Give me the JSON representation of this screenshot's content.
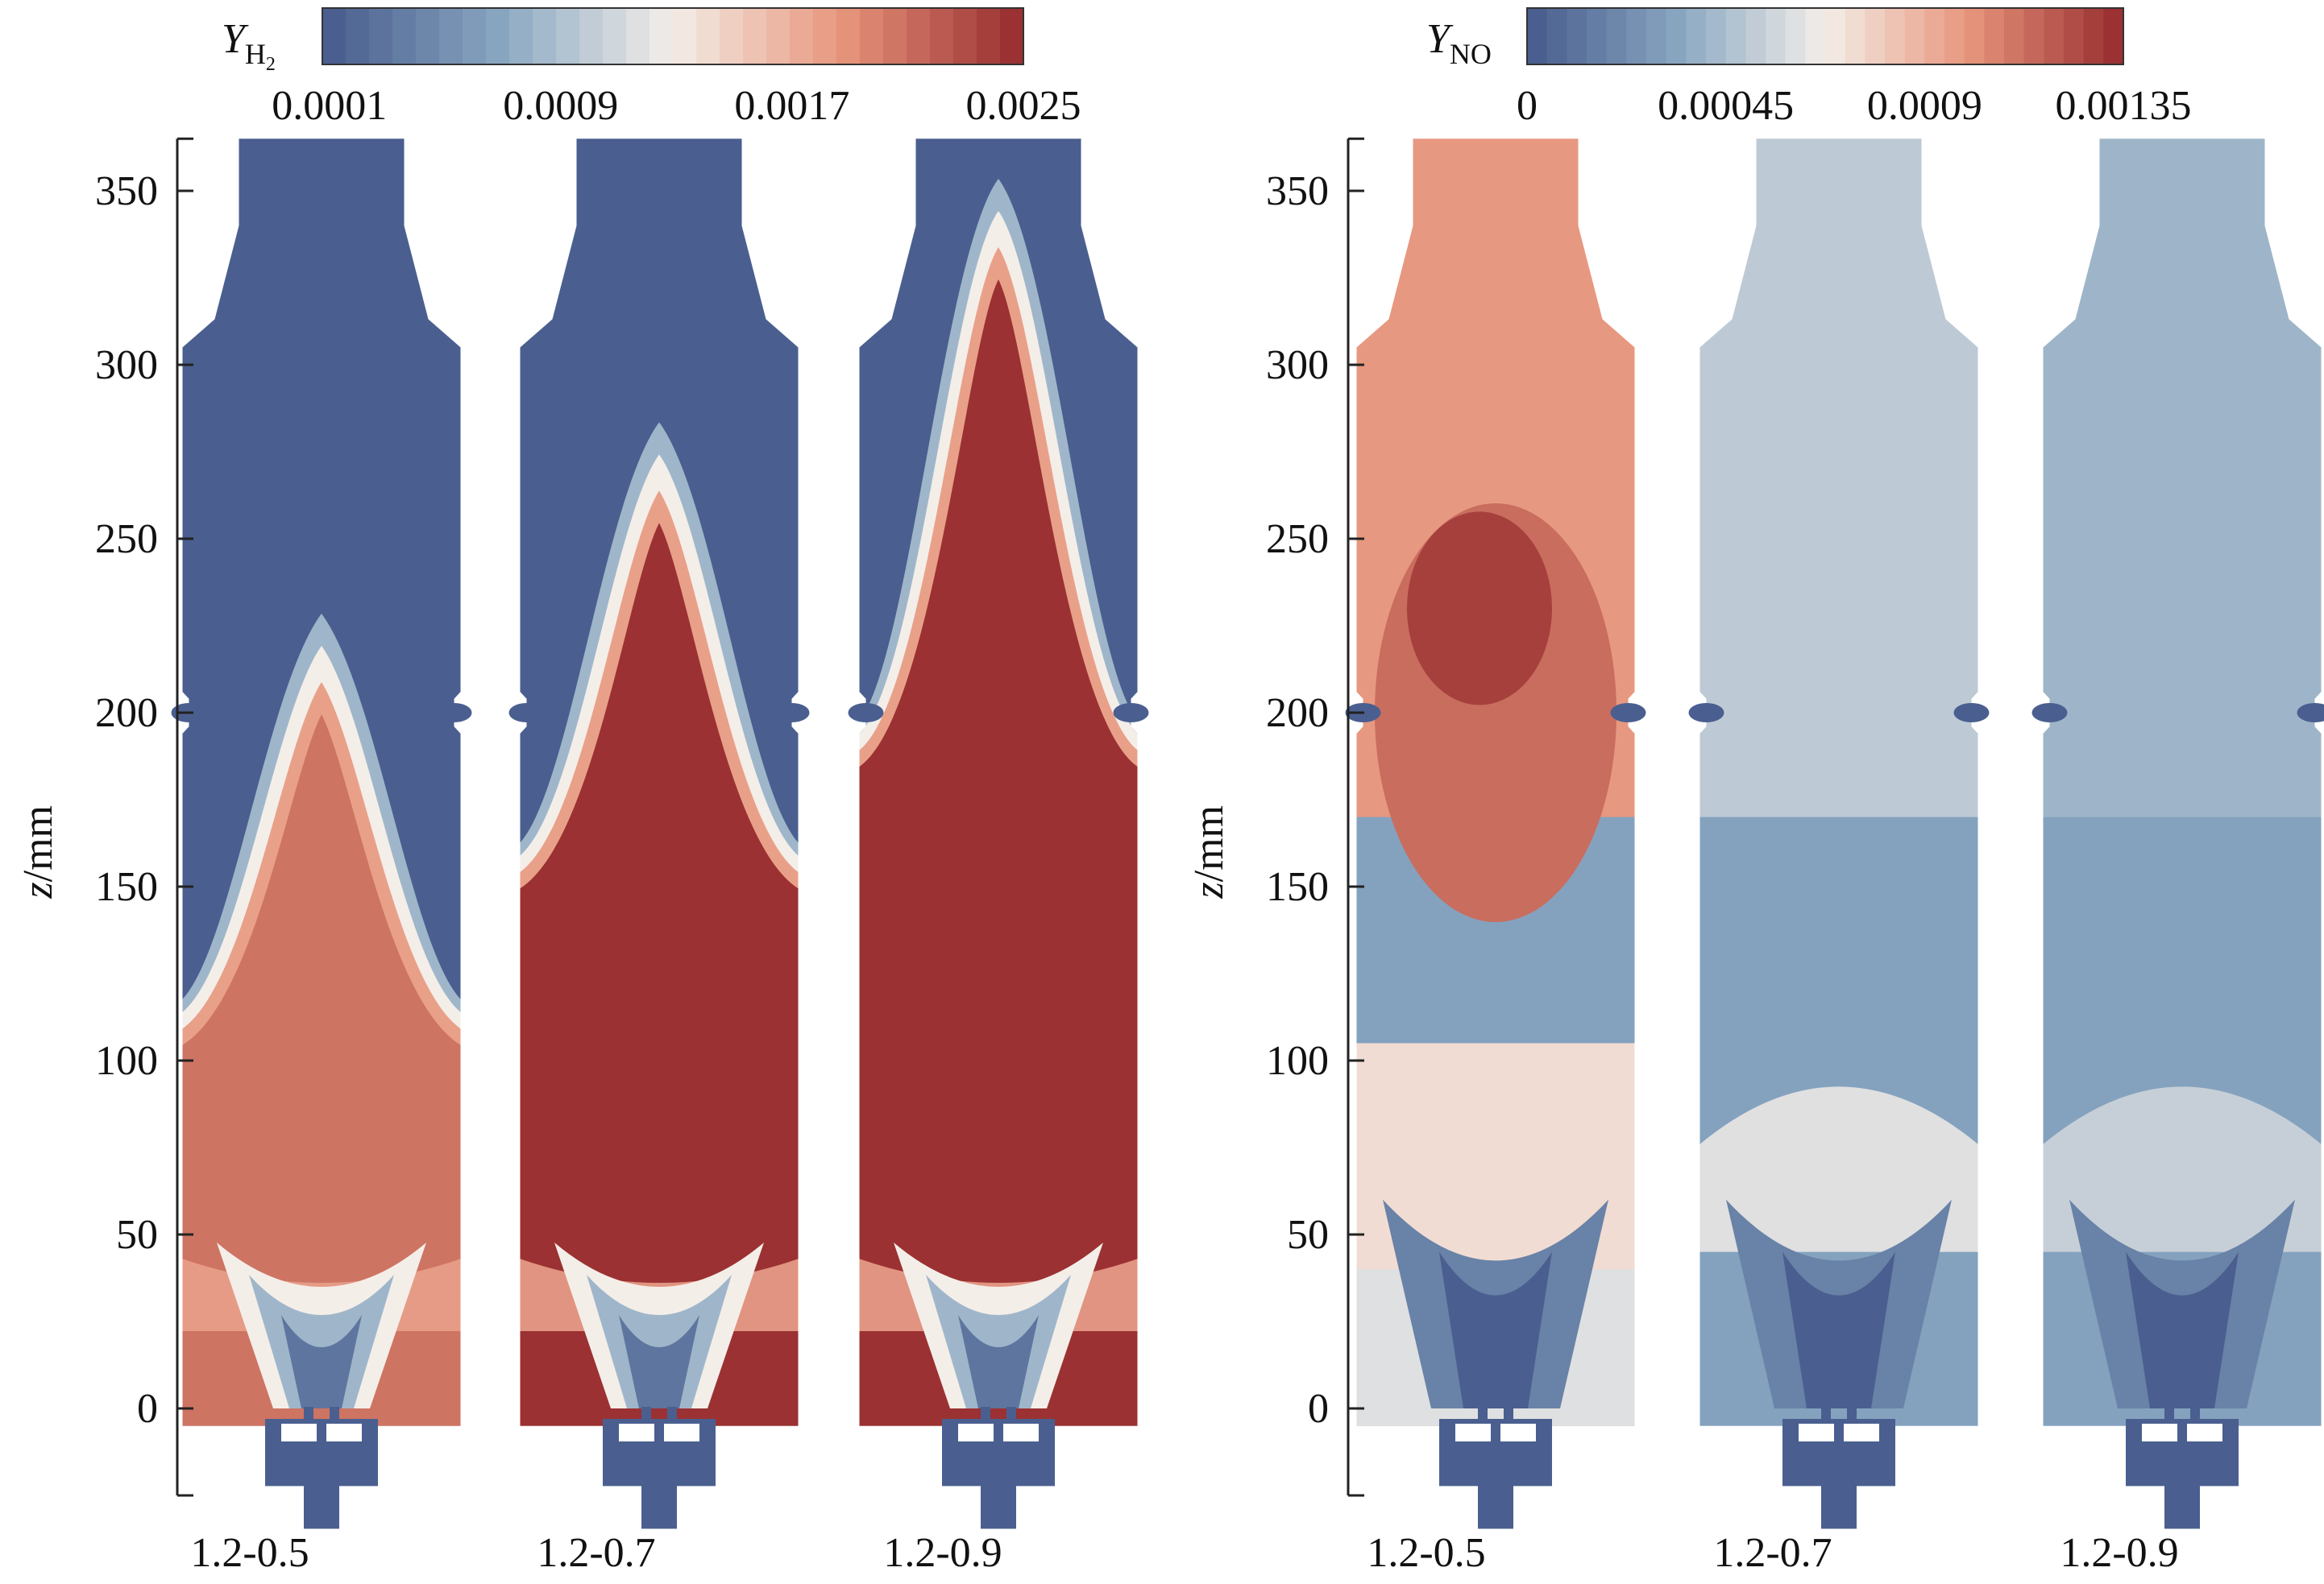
{
  "figure": {
    "colorbars": [
      {
        "variable": "Y",
        "subscript": "H",
        "subscript2": "2",
        "tick_labels": [
          "0.0001",
          "0.0009",
          "0.0017",
          "0.0025"
        ],
        "range": [
          0.0001,
          0.0025
        ]
      },
      {
        "variable": "Y",
        "subscript": "NO",
        "tick_labels": [
          "0",
          "0.00045",
          "0.0009",
          "0.00135"
        ],
        "range": [
          0,
          0.00135
        ]
      }
    ],
    "colormap": [
      "#4a5f8f",
      "#8aa8c2",
      "#f4eee9",
      "#e7957c",
      "#9b3132"
    ],
    "axis_title_var": "z",
    "axis_title_unit": "/mm"
  },
  "chart_data": [
    {
      "type": "heatmap",
      "variable": "Y_H2",
      "ylabel": "z/mm",
      "ylim": [
        -25,
        365
      ],
      "yticks": [
        0,
        50,
        100,
        150,
        200,
        250,
        300,
        350
      ],
      "categories": [
        "1.2-0.5",
        "1.2-0.7",
        "1.2-0.9"
      ],
      "color_range": [
        0.0001,
        0.0025
      ],
      "colorbar_ticks": [
        0.0001,
        0.0009,
        0.0017,
        0.0025
      ],
      "series": [
        {
          "name": "1.2-0.5",
          "flame_front_top_z": 225,
          "hot_zone_bottom_z": 120,
          "center_low_top_z": 50,
          "hot_value": 0.0021
        },
        {
          "name": "1.2-0.7",
          "flame_front_top_z": 280,
          "hot_zone_bottom_z": 165,
          "center_low_top_z": 50,
          "hot_value": 0.0025
        },
        {
          "name": "1.2-0.9",
          "flame_front_top_z": 350,
          "hot_zone_bottom_z": 200,
          "center_low_top_z": 50,
          "hot_value": 0.0025
        }
      ]
    },
    {
      "type": "heatmap",
      "variable": "Y_NO",
      "ylabel": "z/mm",
      "ylim": [
        -25,
        365
      ],
      "yticks": [
        0,
        50,
        100,
        150,
        200,
        250,
        300,
        350
      ],
      "categories": [
        "1.2-0.5",
        "1.2-0.7",
        "1.2-0.9"
      ],
      "color_range": [
        0,
        0.00135
      ],
      "colorbar_ticks": [
        0,
        0.00045,
        0.0009,
        0.00135
      ],
      "series": [
        {
          "name": "1.2-0.5",
          "peak_z": 230,
          "peak_value": 0.0013,
          "upper_value": 0.001,
          "lower_value": 0.0002
        },
        {
          "name": "1.2-0.7",
          "upper_value": 0.0005,
          "lower_value": 0.0002
        },
        {
          "name": "1.2-0.9",
          "upper_value": 0.0004,
          "lower_value": 0.0002
        }
      ]
    }
  ]
}
